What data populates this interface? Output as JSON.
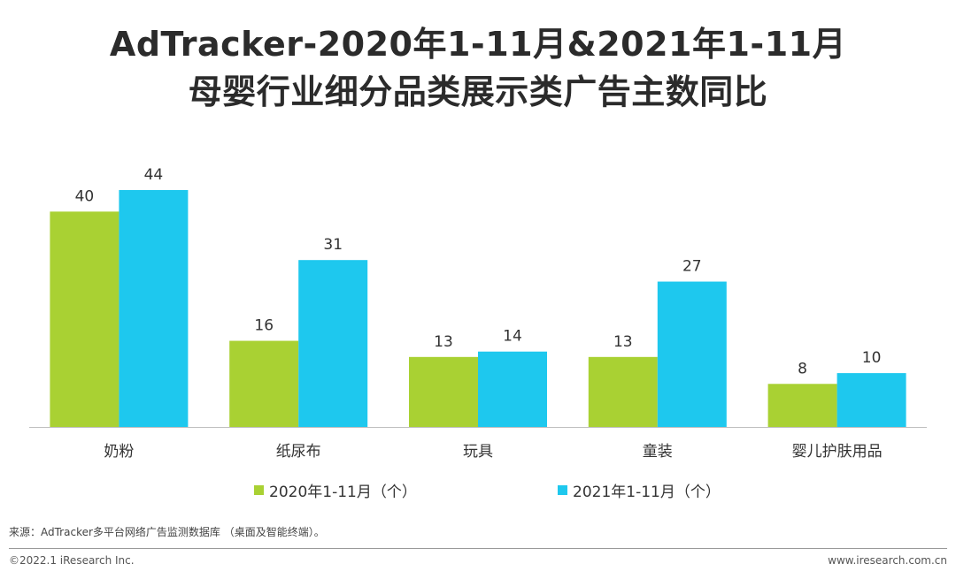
{
  "title_line1": "AdTracker-2020年1-11月&2021年1-11月",
  "title_line2": "母婴行业细分品类展示类广告主数同比",
  "source": "来源：AdTracker多平台网络广告监测数据库 （桌面及智能终端）。",
  "footer": {
    "copyright": "©2022.1 iResearch Inc.",
    "website": "www.iresearch.com.cn"
  },
  "colors": {
    "series_2020": "#a9d133",
    "series_2021": "#1ec8ee",
    "axis": "#bfbfbf"
  },
  "chart_data": {
    "type": "bar",
    "title": "AdTracker-2020年1-11月&2021年1-11月 母婴行业细分品类展示类广告主数同比",
    "categories": [
      "奶粉",
      "纸尿布",
      "玩具",
      "童装",
      "婴儿护肤用品"
    ],
    "series": [
      {
        "name": "2020年1-11月（个）",
        "values": [
          40,
          16,
          13,
          13,
          8
        ]
      },
      {
        "name": "2021年1-11月（个）",
        "values": [
          44,
          31,
          14,
          27,
          10
        ]
      }
    ],
    "ylim": [
      0,
      44
    ],
    "grid": false,
    "legend": "bottom"
  }
}
